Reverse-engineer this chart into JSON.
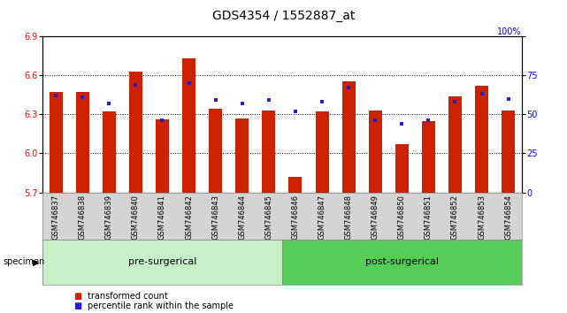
{
  "title": "GDS4354 / 1552887_at",
  "samples": [
    "GSM746837",
    "GSM746838",
    "GSM746839",
    "GSM746840",
    "GSM746841",
    "GSM746842",
    "GSM746843",
    "GSM746844",
    "GSM746845",
    "GSM746846",
    "GSM746847",
    "GSM746848",
    "GSM746849",
    "GSM746850",
    "GSM746851",
    "GSM746852",
    "GSM746853",
    "GSM746854"
  ],
  "bar_values": [
    6.47,
    6.47,
    6.32,
    6.63,
    6.26,
    6.73,
    6.34,
    6.27,
    6.33,
    5.82,
    6.32,
    6.55,
    6.33,
    6.07,
    6.25,
    6.44,
    6.52,
    6.33
  ],
  "percentile_values": [
    62,
    61,
    57,
    69,
    46,
    70,
    59,
    57,
    59,
    52,
    58,
    67,
    46,
    44,
    46,
    58,
    63,
    60
  ],
  "ylim_left": [
    5.7,
    6.9
  ],
  "ylim_right": [
    0,
    100
  ],
  "yticks_left": [
    5.7,
    6.0,
    6.3,
    6.6,
    6.9
  ],
  "yticks_right": [
    0,
    25,
    50,
    75,
    100
  ],
  "bar_color": "#cc2200",
  "dot_color": "#2222cc",
  "pre_surgical_count": 9,
  "pre_label": "pre-surgerical",
  "post_label": "post-surgerical",
  "pre_color": "#c8f0c8",
  "post_color": "#55cc55",
  "specimen_label": "specimen",
  "legend_items": [
    "transformed count",
    "percentile rank within the sample"
  ],
  "title_fontsize": 10,
  "tick_fontsize": 7,
  "label_fontsize": 7,
  "bar_width": 0.5,
  "xtick_bg": "#d4d4d4",
  "group_bg": "#ffffff"
}
